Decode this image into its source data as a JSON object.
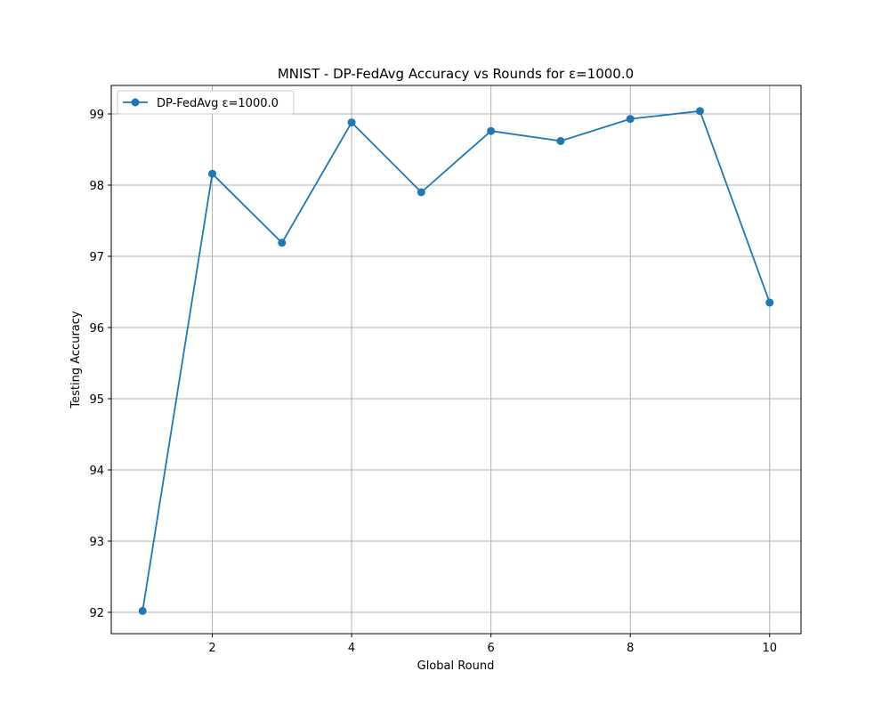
{
  "chart_data": {
    "type": "line",
    "title": "MNIST - DP-FedAvg Accuracy vs Rounds for ε=1000.0",
    "xlabel": "Global Round",
    "ylabel": "Testing Accuracy",
    "xlim": [
      0.55,
      10.45
    ],
    "ylim": [
      91.7,
      99.4
    ],
    "xticks": [
      2,
      4,
      6,
      8,
      10
    ],
    "yticks": [
      92,
      93,
      94,
      95,
      96,
      97,
      98,
      99
    ],
    "grid": true,
    "legend_position": "top-left",
    "series": [
      {
        "name": "DP-FedAvg ε=1000.0",
        "color": "#1f77b4",
        "marker": "circle",
        "x": [
          1,
          2,
          3,
          4,
          5,
          6,
          7,
          8,
          9,
          10
        ],
        "y": [
          92.02,
          98.16,
          97.19,
          98.88,
          97.9,
          98.76,
          98.62,
          98.93,
          99.04,
          96.35
        ]
      }
    ]
  }
}
